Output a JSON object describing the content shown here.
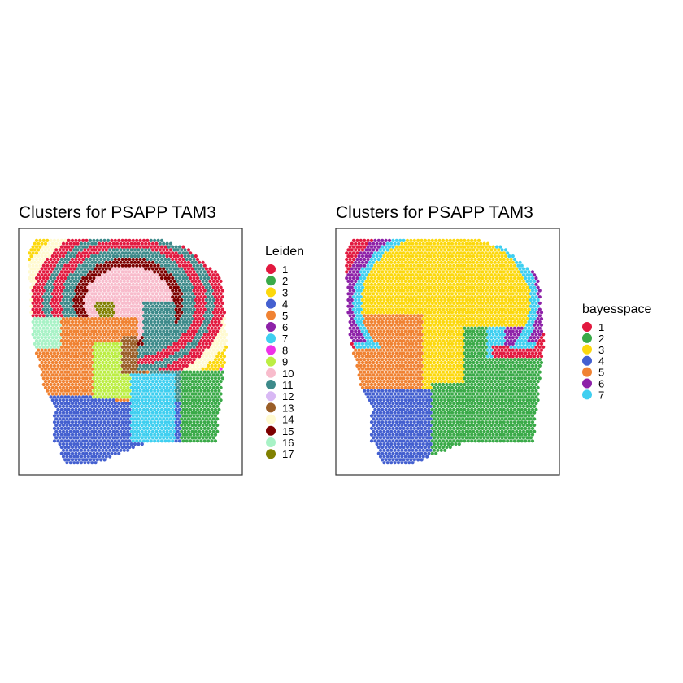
{
  "chart_data": [
    {
      "type": "scatter",
      "title": "Clusters for PSAPP TAM3",
      "legend": {
        "title": "Leiden",
        "placement": "right",
        "entries": [
          {
            "label": "1",
            "color": "#e2193f"
          },
          {
            "label": "2",
            "color": "#3aaa48"
          },
          {
            "label": "3",
            "color": "#fcd80d"
          },
          {
            "label": "4",
            "color": "#4460d0"
          },
          {
            "label": "5",
            "color": "#f08232"
          },
          {
            "label": "6",
            "color": "#8d21a8"
          },
          {
            "label": "7",
            "color": "#3fcff0"
          },
          {
            "label": "8",
            "color": "#ee32e8"
          },
          {
            "label": "9",
            "color": "#bcee44"
          },
          {
            "label": "10",
            "color": "#f8bccc"
          },
          {
            "label": "11",
            "color": "#3d8a8a"
          },
          {
            "label": "12",
            "color": "#d8b8f4"
          },
          {
            "label": "13",
            "color": "#9a5e28"
          },
          {
            "label": "14",
            "color": "#fffad0"
          },
          {
            "label": "15",
            "color": "#7d0000"
          },
          {
            "label": "16",
            "color": "#a8f2c6"
          },
          {
            "label": "17",
            "color": "#808000"
          }
        ]
      },
      "grid": false,
      "axes_visible": false
    },
    {
      "type": "scatter",
      "title": "Clusters for PSAPP TAM3",
      "legend": {
        "title": "bayesspace",
        "placement": "right",
        "entries": [
          {
            "label": "1",
            "color": "#e2193f"
          },
          {
            "label": "2",
            "color": "#3aaa48"
          },
          {
            "label": "3",
            "color": "#fcd80d"
          },
          {
            "label": "4",
            "color": "#4460d0"
          },
          {
            "label": "5",
            "color": "#f08232"
          },
          {
            "label": "6",
            "color": "#8d21a8"
          },
          {
            "label": "7",
            "color": "#3fcff0"
          }
        ]
      },
      "grid": false,
      "axes_visible": false
    }
  ]
}
